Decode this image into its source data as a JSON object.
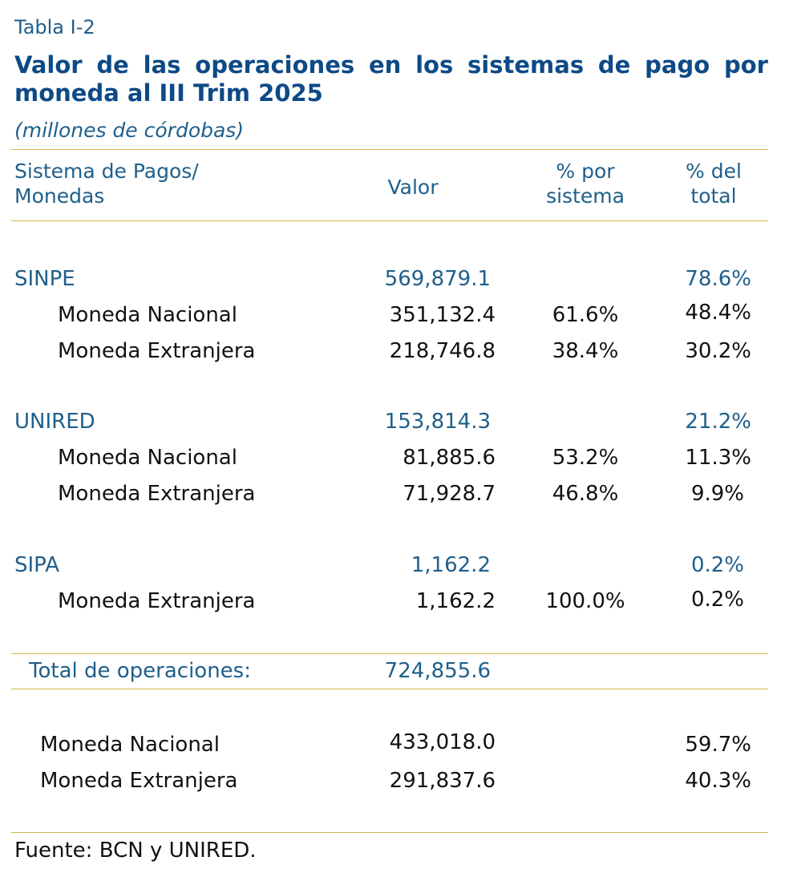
{
  "caption": "Tabla I-2",
  "title": "Valor de las operaciones en los sistemas de pago por moneda al III Trim 2025",
  "subtitle": "(millones de córdobas)",
  "header": {
    "system_line1": "Sistema de Pagos/",
    "system_line2": "Monedas",
    "value": "Valor",
    "pct_system_line1": "% por",
    "pct_system_line2": "sistema",
    "pct_total_line1": "% del",
    "pct_total_line2": "total"
  },
  "groups": [
    {
      "name": "SINPE",
      "value": "569,879.1",
      "pct_total": "78.6%",
      "rows": [
        {
          "name": "Moneda Nacional",
          "value": "351,132.4",
          "pct_system": "61.6%",
          "pct_total": "48.4%"
        },
        {
          "name": "Moneda Extranjera",
          "value": "218,746.8",
          "pct_system": "38.4%",
          "pct_total": "30.2%"
        }
      ]
    },
    {
      "name": "UNIRED",
      "value": "153,814.3",
      "pct_total": "21.2%",
      "rows": [
        {
          "name": "Moneda Nacional",
          "value": "81,885.6",
          "pct_system": "53.2%",
          "pct_total": "11.3%"
        },
        {
          "name": "Moneda Extranjera",
          "value": "71,928.7",
          "pct_system": "46.8%",
          "pct_total": "9.9%"
        }
      ]
    },
    {
      "name": "SIPA",
      "value": "1,162.2",
      "pct_total": "0.2%",
      "rows": [
        {
          "name": "Moneda Extranjera",
          "value": "1,162.2",
          "pct_system": "100.0%",
          "pct_total": "0.2%"
        }
      ]
    }
  ],
  "total": {
    "label": "Total de operaciones:",
    "value": "724,855.6"
  },
  "summary": [
    {
      "name": "Moneda Nacional",
      "value": "433,018.0",
      "pct_total": "59.7%"
    },
    {
      "name": "Moneda Extranjera",
      "value": "291,837.6",
      "pct_total": "40.3%"
    }
  ],
  "source": "Fuente: BCN y UNIRED."
}
